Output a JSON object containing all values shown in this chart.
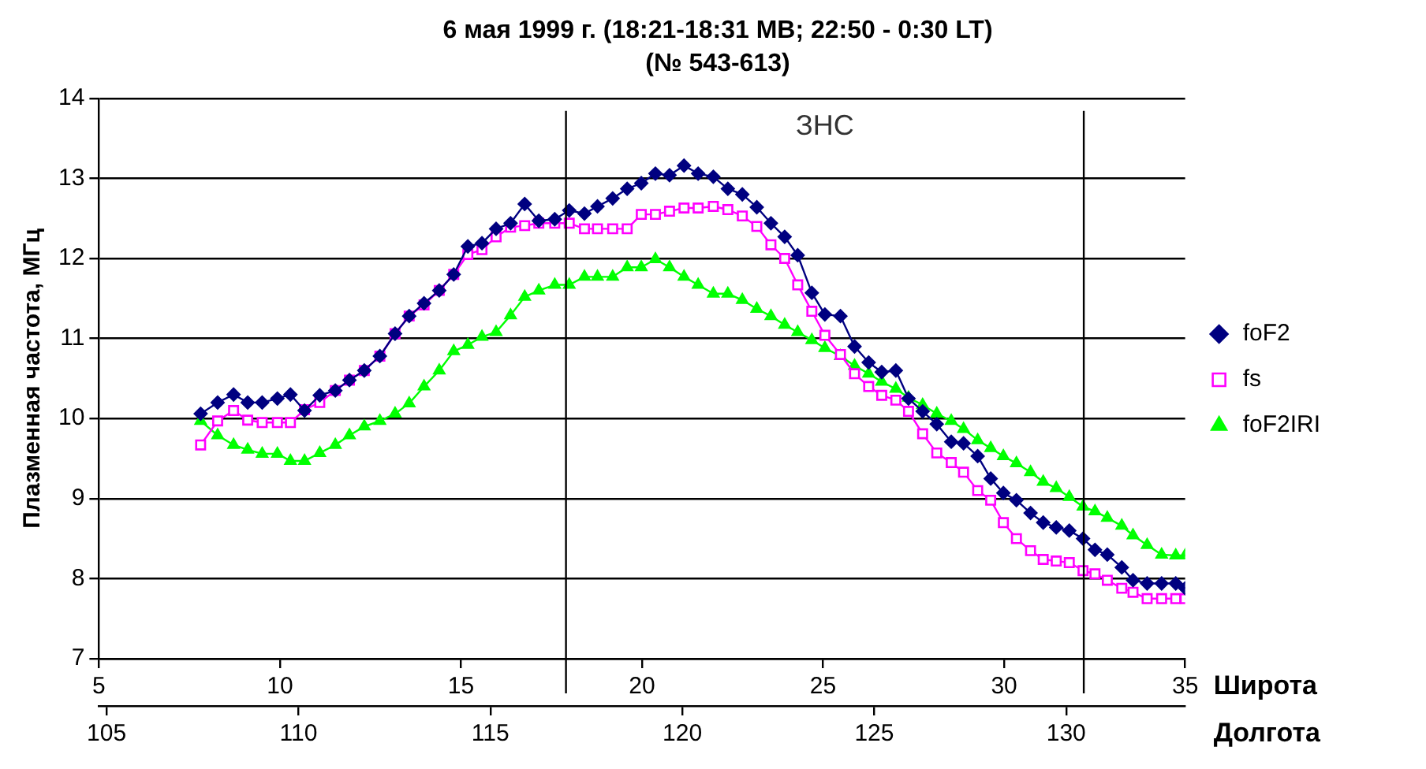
{
  "chart_data": {
    "type": "line",
    "title": "6 мая 1999 г. (18:21-18:31 МВ; 22:50 - 0:30 LT)",
    "subtitle": "(№ 543-613)",
    "ylabel": "Плазменная частота, МГц",
    "xlabel": "Широта",
    "x2label": "Долгота",
    "x": [
      7.81,
      8.28,
      8.72,
      9.11,
      9.51,
      9.93,
      10.29,
      10.68,
      11.1,
      11.53,
      11.92,
      12.33,
      12.76,
      13.18,
      13.57,
      13.98,
      14.4,
      14.8,
      15.19,
      15.58,
      15.97,
      16.37,
      16.76,
      17.15,
      17.59,
      17.99,
      18.41,
      18.77,
      19.19,
      19.59,
      19.98,
      20.37,
      20.76,
      21.16,
      21.55,
      21.97,
      22.37,
      22.77,
      23.17,
      23.56,
      23.94,
      24.3,
      24.69,
      25.05,
      25.48,
      25.87,
      26.26,
      26.62,
      27.01,
      27.36,
      27.75,
      28.14,
      28.54,
      28.88,
      29.27,
      29.63,
      29.98,
      30.34,
      30.73,
      31.08,
      31.44,
      31.8,
      32.18,
      32.51,
      32.85,
      33.25,
      33.56,
      33.95,
      34.35,
      34.74,
      35
    ],
    "series": [
      {
        "name": "foF2",
        "color": "#000080",
        "marker": "diamond",
        "values": [
          10.06,
          10.2,
          10.3,
          10.2,
          10.2,
          10.25,
          10.3,
          10.1,
          10.29,
          10.35,
          10.48,
          10.6,
          10.78,
          11.06,
          11.28,
          11.44,
          11.6,
          11.8,
          12.15,
          12.19,
          12.37,
          12.44,
          12.68,
          12.47,
          12.49,
          12.6,
          12.56,
          12.65,
          12.75,
          12.87,
          12.94,
          13.06,
          13.04,
          13.16,
          13.06,
          13.02,
          12.87,
          12.8,
          12.64,
          12.44,
          12.27,
          12.04,
          11.57,
          11.3,
          11.28,
          10.9,
          10.7,
          10.58,
          10.6,
          10.25,
          10.09,
          9.93,
          9.71,
          9.69,
          9.53,
          9.25,
          9.07,
          8.98,
          8.82,
          8.7,
          8.64,
          8.6,
          8.5,
          8.36,
          8.3,
          8.14,
          7.98,
          7.94,
          7.94,
          7.94,
          7.88
        ]
      },
      {
        "name": "fs",
        "color": "#ff00ff",
        "marker": "square",
        "values": [
          9.67,
          9.97,
          10.1,
          9.98,
          9.95,
          9.95,
          9.95,
          10.11,
          10.2,
          10.35,
          10.48,
          10.6,
          10.78,
          11.06,
          11.28,
          11.42,
          11.6,
          11.8,
          12.05,
          12.11,
          12.27,
          12.39,
          12.41,
          12.44,
          12.44,
          12.44,
          12.37,
          12.37,
          12.37,
          12.37,
          12.55,
          12.55,
          12.59,
          12.63,
          12.63,
          12.65,
          12.61,
          12.53,
          12.4,
          12.17,
          12.0,
          11.67,
          11.34,
          11.04,
          10.8,
          10.56,
          10.4,
          10.29,
          10.23,
          10.09,
          9.81,
          9.57,
          9.45,
          9.33,
          9.1,
          8.98,
          8.7,
          8.5,
          8.35,
          8.24,
          8.22,
          8.2,
          8.1,
          8.06,
          7.98,
          7.88,
          7.83,
          7.75,
          7.75,
          7.75,
          7.75
        ]
      },
      {
        "name": "foF2IRI",
        "color": "#00ff00",
        "marker": "triangle",
        "values": [
          9.97,
          9.79,
          9.67,
          9.61,
          9.56,
          9.56,
          9.47,
          9.47,
          9.57,
          9.67,
          9.79,
          9.9,
          9.97,
          10.06,
          10.19,
          10.4,
          10.6,
          10.84,
          10.92,
          11.02,
          11.08,
          11.29,
          11.52,
          11.6,
          11.67,
          11.67,
          11.77,
          11.77,
          11.77,
          11.89,
          11.89,
          11.99,
          11.89,
          11.77,
          11.67,
          11.56,
          11.56,
          11.48,
          11.37,
          11.28,
          11.17,
          11.08,
          10.98,
          10.88,
          10.78,
          10.66,
          10.56,
          10.46,
          10.37,
          10.26,
          10.17,
          10.06,
          9.97,
          9.87,
          9.73,
          9.63,
          9.53,
          9.44,
          9.33,
          9.21,
          9.13,
          9.02,
          8.9,
          8.84,
          8.76,
          8.66,
          8.54,
          8.42,
          8.3,
          8.29,
          8.29
        ]
      }
    ],
    "xlim": [
      5,
      35
    ],
    "xticks": [
      5,
      10,
      15,
      20,
      25,
      30,
      35
    ],
    "x2lim": [
      104.8,
      133.1
    ],
    "x2ticks": [
      105,
      110,
      115,
      120,
      125,
      130
    ],
    "ylim": [
      7,
      14
    ],
    "yticks": [
      7,
      8,
      9,
      10,
      11,
      12,
      13,
      14
    ],
    "ref_lines": [
      {
        "axis": "x",
        "value": 17.9,
        "color": "#000000"
      },
      {
        "axis": "x",
        "value": 32.2,
        "color": "#000000"
      }
    ],
    "annotations": [
      "ЗНС"
    ],
    "grid": "y",
    "legend": "right",
    "line_style": "solid"
  }
}
